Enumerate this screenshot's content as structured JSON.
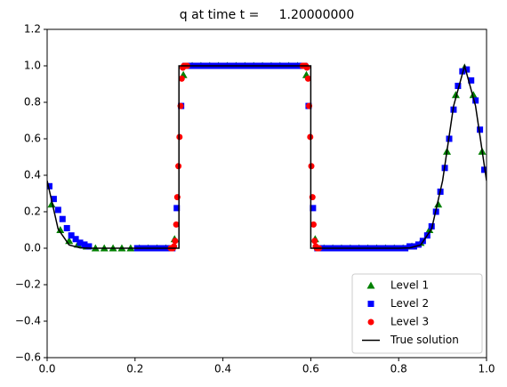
{
  "chart_data": {
    "type": "line",
    "title": "q at time t =     1.20000000",
    "xlim": [
      0,
      1
    ],
    "ylim": [
      -0.6,
      1.2
    ],
    "xticks": [
      {
        "value": 0,
        "label": "0.0"
      },
      {
        "value": 0.2,
        "label": "0.2"
      },
      {
        "value": 0.4,
        "label": "0.4"
      },
      {
        "value": 0.6,
        "label": "0.6"
      },
      {
        "value": 0.8,
        "label": "0.8"
      },
      {
        "value": 1,
        "label": "1.0"
      }
    ],
    "yticks": [
      {
        "value": -0.6,
        "label": "−0.6"
      },
      {
        "value": -0.4,
        "label": "−0.4"
      },
      {
        "value": -0.2,
        "label": "−0.2"
      },
      {
        "value": 0,
        "label": "0.0"
      },
      {
        "value": 0.2,
        "label": "0.2"
      },
      {
        "value": 0.4,
        "label": "0.4"
      },
      {
        "value": 0.6,
        "label": "0.6"
      },
      {
        "value": 0.8,
        "label": "0.8"
      },
      {
        "value": 1,
        "label": "1.0"
      },
      {
        "value": 1.2,
        "label": "1.2"
      }
    ],
    "grid": false,
    "legend": "lower right",
    "series": [
      {
        "name": "Level 1",
        "color": "#008000",
        "marker": "triangle",
        "x": [
          0.01,
          0.03,
          0.05,
          0.07,
          0.09,
          0.11,
          0.13,
          0.15,
          0.17,
          0.19,
          0.21,
          0.23,
          0.25,
          0.27,
          0.29,
          0.31,
          0.33,
          0.35,
          0.37,
          0.39,
          0.41,
          0.43,
          0.45,
          0.47,
          0.49,
          0.51,
          0.53,
          0.55,
          0.57,
          0.59,
          0.61,
          0.63,
          0.65,
          0.67,
          0.69,
          0.71,
          0.73,
          0.75,
          0.77,
          0.79,
          0.81,
          0.83,
          0.85,
          0.87,
          0.89,
          0.91,
          0.93,
          0.95,
          0.97,
          0.99
        ],
        "values": [
          0.24,
          0.1,
          0.04,
          0.02,
          0.01,
          0,
          0,
          0,
          0,
          0,
          0,
          0,
          0,
          0,
          0.05,
          0.95,
          1,
          1,
          1,
          1,
          1,
          1,
          1,
          1,
          1,
          1,
          1,
          1,
          1,
          0.95,
          0.05,
          0,
          0,
          0,
          0,
          0,
          0,
          0,
          0,
          0,
          0,
          0.01,
          0.03,
          0.1,
          0.24,
          0.53,
          0.84,
          0.99,
          0.84,
          0.53
        ]
      },
      {
        "name": "Level 2",
        "color": "#0000ff",
        "marker": "square",
        "x": [
          0.005,
          0.015,
          0.025,
          0.035,
          0.045,
          0.055,
          0.065,
          0.075,
          0.085,
          0.095,
          0.205,
          0.215,
          0.225,
          0.235,
          0.245,
          0.255,
          0.265,
          0.275,
          0.285,
          0.295,
          0.305,
          0.315,
          0.325,
          0.335,
          0.345,
          0.355,
          0.365,
          0.375,
          0.385,
          0.395,
          0.405,
          0.415,
          0.425,
          0.435,
          0.445,
          0.455,
          0.465,
          0.475,
          0.485,
          0.495,
          0.505,
          0.515,
          0.525,
          0.535,
          0.545,
          0.555,
          0.565,
          0.575,
          0.585,
          0.595,
          0.605,
          0.615,
          0.625,
          0.635,
          0.645,
          0.655,
          0.665,
          0.675,
          0.685,
          0.695,
          0.705,
          0.715,
          0.725,
          0.735,
          0.745,
          0.755,
          0.765,
          0.775,
          0.785,
          0.795,
          0.805,
          0.815,
          0.825,
          0.835,
          0.845,
          0.855,
          0.865,
          0.875,
          0.885,
          0.895,
          0.905,
          0.915,
          0.925,
          0.935,
          0.945,
          0.955,
          0.965,
          0.975,
          0.985,
          0.995
        ],
        "values": [
          0.34,
          0.27,
          0.21,
          0.16,
          0.11,
          0.07,
          0.05,
          0.03,
          0.02,
          0.01,
          0,
          0,
          0,
          0,
          0,
          0,
          0,
          0,
          0,
          0.22,
          0.78,
          1,
          1,
          1,
          1,
          1,
          1,
          1,
          1,
          1,
          1,
          1,
          1,
          1,
          1,
          1,
          1,
          1,
          1,
          1,
          1,
          1,
          1,
          1,
          1,
          1,
          1,
          1,
          1,
          0.78,
          0.22,
          0,
          0,
          0,
          0,
          0,
          0,
          0,
          0,
          0,
          0,
          0,
          0,
          0,
          0,
          0,
          0,
          0,
          0,
          0,
          0,
          0,
          0.01,
          0.01,
          0.02,
          0.04,
          0.07,
          0.12,
          0.2,
          0.31,
          0.44,
          0.6,
          0.76,
          0.89,
          0.97,
          0.98,
          0.92,
          0.81,
          0.65,
          0.43
        ]
      },
      {
        "name": "Level 3",
        "color": "#ff0000",
        "marker": "circle",
        "x": [
          0.28125,
          0.28375,
          0.28625,
          0.28875,
          0.29125,
          0.29375,
          0.29625,
          0.29875,
          0.30125,
          0.30375,
          0.30625,
          0.30875,
          0.31125,
          0.31375,
          0.31625,
          0.31875,
          0.58125,
          0.58375,
          0.58625,
          0.58875,
          0.59125,
          0.59375,
          0.59625,
          0.59875,
          0.60125,
          0.60375,
          0.60625,
          0.60875,
          0.61125,
          0.61375,
          0.61625,
          0.61875
        ],
        "values": [
          0,
          0,
          0,
          0.01,
          0.04,
          0.13,
          0.28,
          0.45,
          0.61,
          0.78,
          0.93,
          0.99,
          1,
          1,
          1,
          1,
          1,
          1,
          1,
          1,
          0.99,
          0.93,
          0.78,
          0.61,
          0.45,
          0.28,
          0.13,
          0.04,
          0.01,
          0,
          0,
          0
        ]
      },
      {
        "name": "True solution",
        "color": "#000000",
        "marker": "none",
        "x": [
          0,
          0.025,
          0.05,
          0.075,
          0.1,
          0.125,
          0.15,
          0.3,
          0.3,
          0.6,
          0.6,
          0.8,
          0.825,
          0.85,
          0.875,
          0.9,
          0.925,
          0.95,
          0.975,
          1
        ],
        "values": [
          0.37,
          0.105,
          0.018,
          0.002,
          0,
          0,
          0,
          0,
          1,
          1,
          0,
          0,
          0.002,
          0.018,
          0.105,
          0.37,
          0.78,
          1,
          0.78,
          0.37
        ]
      }
    ]
  }
}
